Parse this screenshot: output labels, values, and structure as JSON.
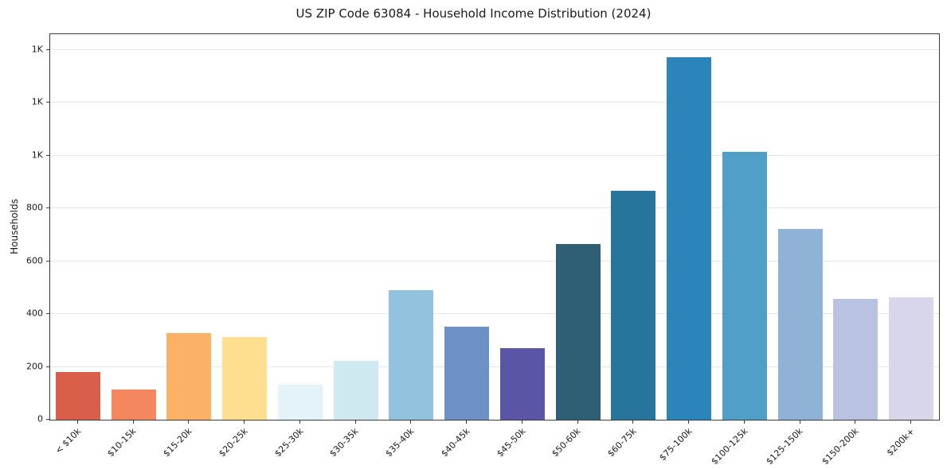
{
  "chart_data": {
    "type": "bar",
    "title": "US ZIP Code 63084 - Household Income Distribution (2024)",
    "xlabel": "",
    "ylabel": "Households",
    "categories": [
      "< $10k",
      "$10-15k",
      "$15-20k",
      "$20-25k",
      "$25-30k",
      "$30-35k",
      "$35-40k",
      "$40-45k",
      "$45-50k",
      "$50-60k",
      "$60-75k",
      "$75-100k",
      "$100-125k",
      "$125-150k",
      "$150-200k",
      "$200k+"
    ],
    "values": [
      182,
      115,
      327,
      313,
      133,
      224,
      492,
      352,
      272,
      665,
      868,
      1372,
      1015,
      722,
      458,
      465
    ],
    "bar_colors": [
      "#d95f4b",
      "#f5875f",
      "#fbb266",
      "#fedf90",
      "#e4f3f8",
      "#cfe9f0",
      "#92c2de",
      "#6d91c6",
      "#5a55a5",
      "#2e5f74",
      "#27759c",
      "#2b85bb",
      "#4f9fc8",
      "#8fb2d6",
      "#b9c3e1",
      "#d8d7e9"
    ],
    "ylim": [
      0,
      1460
    ],
    "yticks": {
      "values": [
        0,
        200,
        400,
        600,
        800,
        1000,
        1200,
        1400
      ],
      "labels": [
        "0",
        "200",
        "400",
        "600",
        "800",
        "1K",
        "1K",
        "1K"
      ]
    },
    "grid": "horizontal",
    "grid_color": "#e6e6e6",
    "legend": "none",
    "plot_background": "#ffffff"
  }
}
